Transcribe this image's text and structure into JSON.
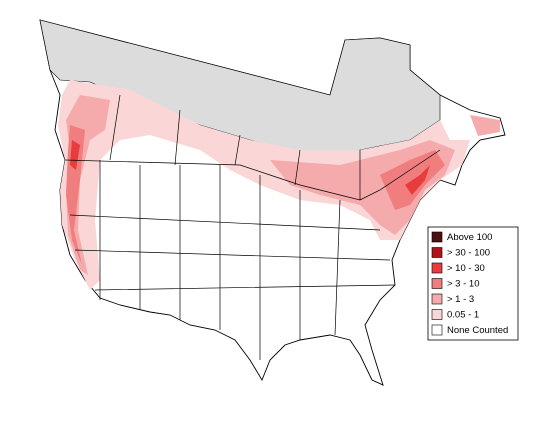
{
  "legend": {
    "items": [
      {
        "label": "Above 100",
        "color": "#4d0f0f"
      },
      {
        "label": "> 30 - 100",
        "color": "#b01414"
      },
      {
        "label": "> 10 - 30",
        "color": "#e83c3c"
      },
      {
        "label": "> 3 - 10",
        "color": "#f07e7e"
      },
      {
        "label": "> 1 - 3",
        "color": "#f5abab"
      },
      {
        "label": "0.05 - 1",
        "color": "#fad6d6"
      },
      {
        "label": "None Counted",
        "color": "#ffffff"
      }
    ]
  }
}
